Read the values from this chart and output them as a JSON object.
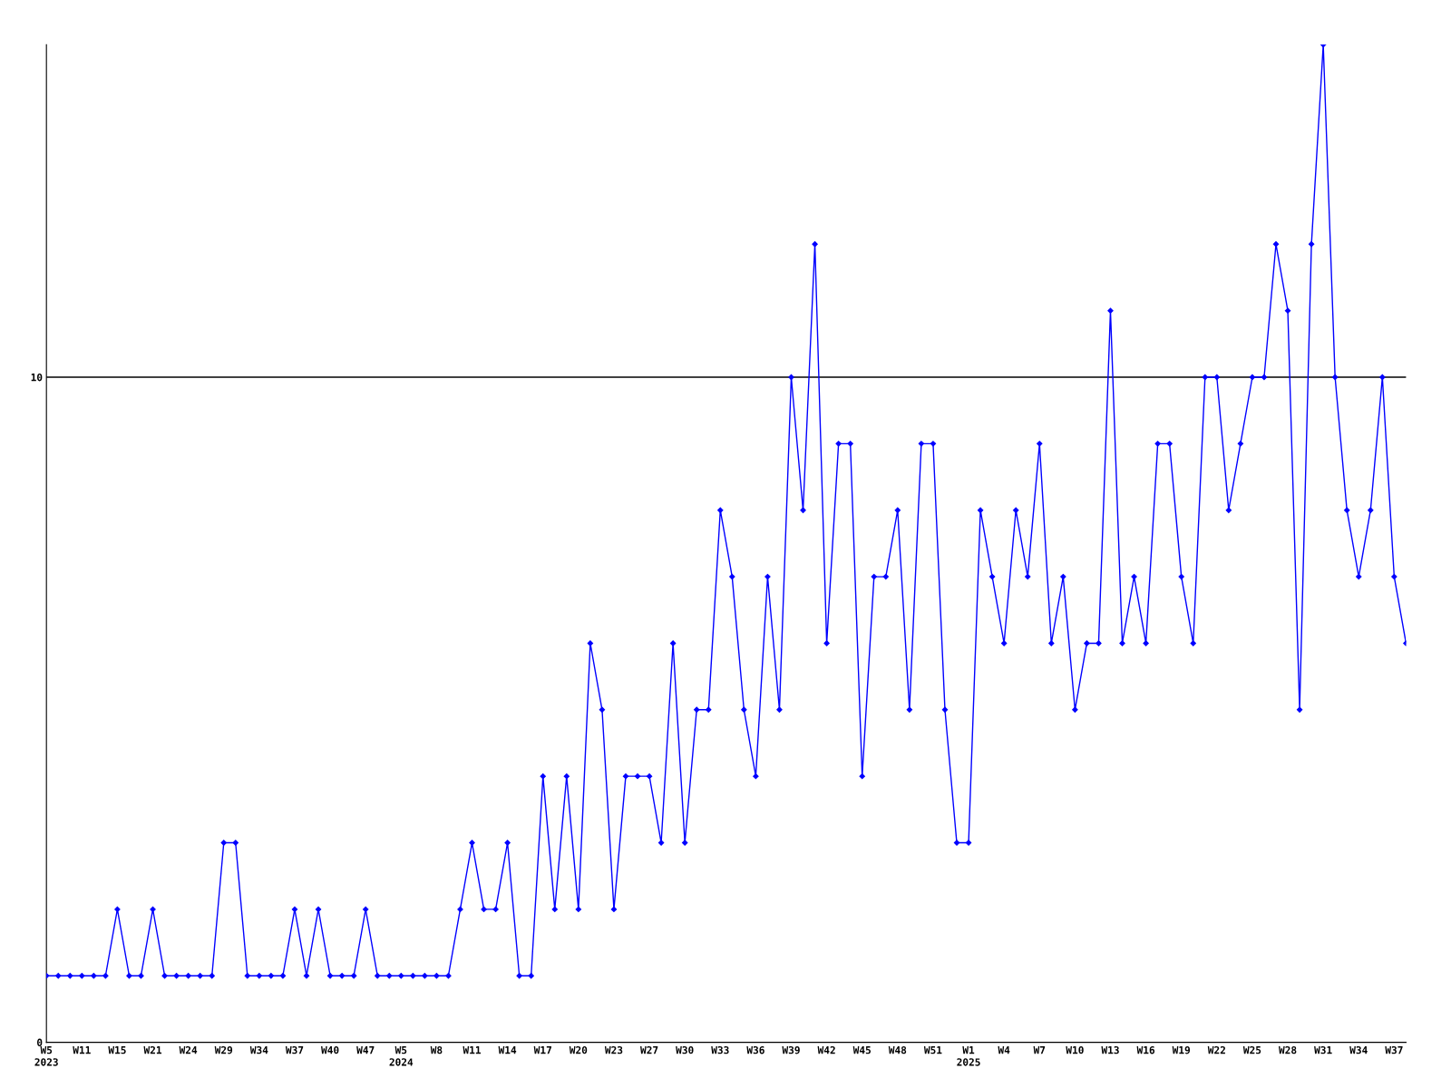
{
  "chart_data": {
    "type": "line",
    "categories": [
      "W5\n2023",
      null,
      null,
      "W11",
      null,
      null,
      "W15",
      null,
      null,
      "W21",
      null,
      null,
      "W24",
      null,
      null,
      "W29",
      null,
      null,
      "W34",
      null,
      null,
      "W37",
      null,
      null,
      "W40",
      null,
      null,
      "W47",
      null,
      null,
      "W5\n2024",
      null,
      null,
      "W8",
      null,
      null,
      "W11",
      null,
      null,
      "W14",
      null,
      null,
      "W17",
      null,
      null,
      "W20",
      null,
      null,
      "W23",
      null,
      null,
      "W27",
      null,
      null,
      "W30",
      null,
      null,
      "W33",
      null,
      null,
      "W36",
      null,
      null,
      "W39",
      null,
      null,
      "W42",
      null,
      null,
      "W45",
      null,
      null,
      "W48",
      null,
      null,
      "W51",
      null,
      null,
      "W1\n2025",
      null,
      null,
      "W4",
      null,
      null,
      "W7",
      null,
      null,
      "W10",
      null,
      null,
      "W13",
      null,
      null,
      "W16",
      null,
      null,
      "W19",
      null,
      null,
      "W22",
      null,
      null,
      "W25",
      null,
      null,
      "W28",
      null,
      null,
      "W31",
      null,
      null,
      "W34",
      null,
      null,
      "W37",
      null
    ],
    "series": [
      {
        "color": "#0000ff",
        "values": [
          1,
          1,
          1,
          1,
          1,
          1,
          2,
          1,
          1,
          2,
          1,
          1,
          1,
          1,
          1,
          3,
          3,
          1,
          1,
          1,
          1,
          2,
          1,
          2,
          1,
          1,
          1,
          2,
          1,
          1,
          1,
          1,
          1,
          1,
          1,
          2,
          3,
          2,
          2,
          3,
          1,
          1,
          4,
          2,
          4,
          2,
          6,
          5,
          2,
          4,
          4,
          4,
          3,
          6,
          3,
          5,
          5,
          8,
          7,
          5,
          4,
          7,
          5,
          10,
          8,
          12,
          6,
          9,
          9,
          4,
          7,
          7,
          8,
          5,
          9,
          9,
          5,
          3,
          3,
          8,
          7,
          6,
          8,
          7,
          9,
          6,
          7,
          5,
          6,
          6,
          11,
          6,
          7,
          6,
          9,
          9,
          7,
          6,
          10,
          10,
          8,
          9,
          10,
          10,
          12,
          11,
          5,
          12,
          15,
          10,
          8,
          7,
          8,
          10,
          7,
          6
        ]
      }
    ],
    "ylim": [
      0,
      15
    ],
    "yticks": [
      0,
      10
    ],
    "ref_lines": [
      {
        "axis": "y",
        "value": 10,
        "color": "#000000"
      }
    ],
    "marker": "diamond",
    "line_style": "solid",
    "grid": false,
    "legend": false
  }
}
